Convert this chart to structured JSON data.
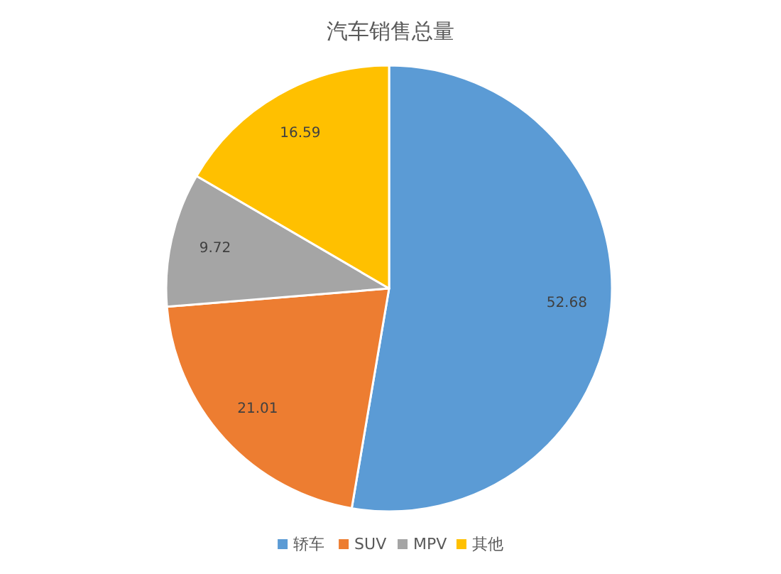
{
  "chart_data": {
    "type": "pie",
    "title": "汽车销售总量",
    "categories": [
      "轿车",
      "SUV",
      "MPV",
      "其他"
    ],
    "values": [
      52.68,
      21.01,
      9.72,
      16.59
    ],
    "colors": [
      "#5b9bd5",
      "#ed7d31",
      "#a5a5a5",
      "#ffc000"
    ],
    "data_labels": true,
    "legend": "bottom"
  }
}
